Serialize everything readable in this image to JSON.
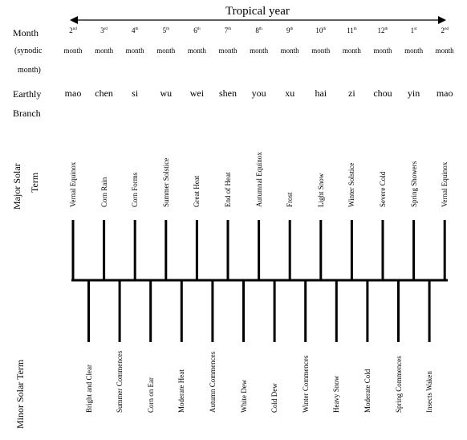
{
  "title": "Tropical year",
  "row_labels": {
    "month": "Month",
    "synodic_1": "(synodic",
    "synodic_2": "month)",
    "earthly": "Earthly",
    "branch": "Branch",
    "major_1": "Major Solar",
    "major_2": "Term",
    "minor": "Minor Solar Term"
  },
  "month_word": "month",
  "months": [
    {
      "num": "2",
      "suffix": "nd",
      "branch": "mao",
      "major": "Vernal Equinox"
    },
    {
      "num": "3",
      "suffix": "rd",
      "branch": "chen",
      "major": "Corn Rain"
    },
    {
      "num": "4",
      "suffix": "th",
      "branch": "si",
      "major": "Corn Forms"
    },
    {
      "num": "5",
      "suffix": "th",
      "branch": "wu",
      "major": "Summer Solstice"
    },
    {
      "num": "6",
      "suffix": "th",
      "branch": "wei",
      "major": "Great Heat"
    },
    {
      "num": "7",
      "suffix": "th",
      "branch": "shen",
      "major": "End of Heat"
    },
    {
      "num": "8",
      "suffix": "th",
      "branch": "you",
      "major": "Autumnal Equinox"
    },
    {
      "num": "9",
      "suffix": "th",
      "branch": "xu",
      "major": "Frost"
    },
    {
      "num": "10",
      "suffix": "th",
      "branch": "hai",
      "major": "Light Snow"
    },
    {
      "num": "11",
      "suffix": "th",
      "branch": "zi",
      "major": "Winter Solstice"
    },
    {
      "num": "12",
      "suffix": "th",
      "branch": "chou",
      "major": "Severe Cold"
    },
    {
      "num": "1",
      "suffix": "st",
      "branch": "yin",
      "major": "Spring Showers"
    },
    {
      "num": "2",
      "suffix": "nd",
      "branch": "mao",
      "major": "Vernal Equinox"
    }
  ],
  "minor_terms": [
    "Bright and Clear",
    "Summer Commences",
    "Corn on Ear",
    "Moderate Heat",
    "Autumn Commences",
    "White Dew",
    "Cold Dew",
    "Winter Commences",
    "Heavy Snow",
    "Moderate Cold",
    "Spring Commences",
    "Insects Waken"
  ],
  "colors": {
    "ink": "#000000",
    "background": "#ffffff"
  }
}
